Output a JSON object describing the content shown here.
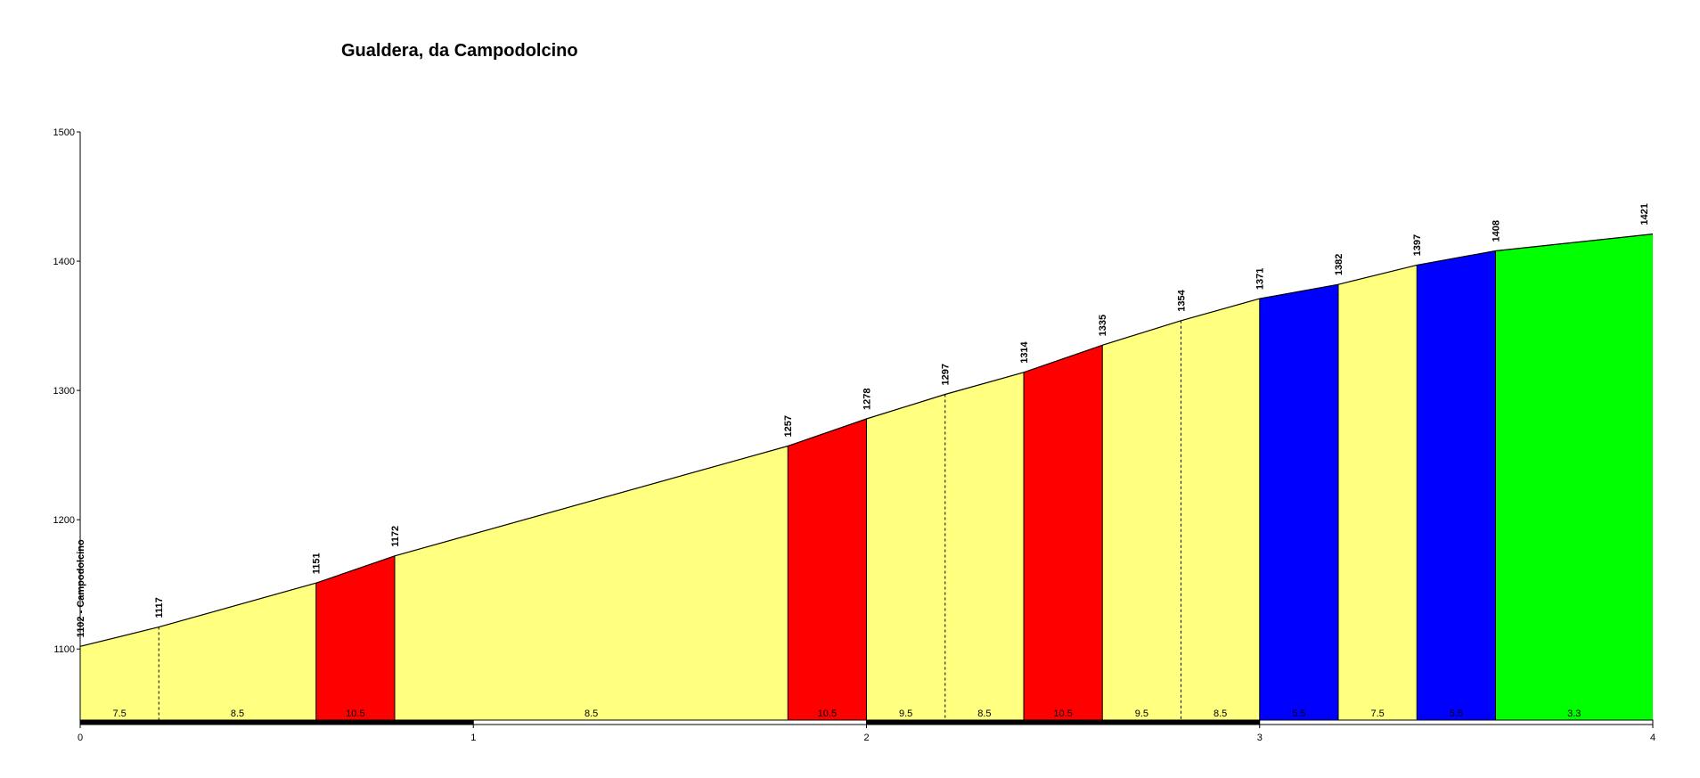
{
  "chart_data": {
    "type": "area",
    "title": "Gualdera, da Campodolcino",
    "xlabel": "",
    "ylabel": "",
    "xlim": [
      0,
      4
    ],
    "ylim": [
      1045,
      1500
    ],
    "x_ticks": [
      "0",
      "1",
      "2",
      "3",
      "4"
    ],
    "y_ticks": [
      "1100",
      "1200",
      "1300",
      "1400",
      "1500"
    ],
    "profile": [
      {
        "x": 0.0,
        "elev": 1102,
        "label": "1102 - Campodolcino"
      },
      {
        "x": 0.2,
        "elev": 1117,
        "label": "1117"
      },
      {
        "x": 0.6,
        "elev": 1151,
        "label": "1151"
      },
      {
        "x": 0.8,
        "elev": 1172,
        "label": "1172"
      },
      {
        "x": 1.8,
        "elev": 1257,
        "label": "1257"
      },
      {
        "x": 2.0,
        "elev": 1278,
        "label": "1278"
      },
      {
        "x": 2.2,
        "elev": 1297,
        "label": "1297"
      },
      {
        "x": 2.4,
        "elev": 1314,
        "label": "1314"
      },
      {
        "x": 2.6,
        "elev": 1335,
        "label": "1335"
      },
      {
        "x": 2.8,
        "elev": 1354,
        "label": "1354"
      },
      {
        "x": 3.0,
        "elev": 1371,
        "label": "1371"
      },
      {
        "x": 3.2,
        "elev": 1382,
        "label": "1382"
      },
      {
        "x": 3.4,
        "elev": 1397,
        "label": "1397"
      },
      {
        "x": 3.6,
        "elev": 1408,
        "label": "1408"
      },
      {
        "x": 4.0,
        "elev": 1421,
        "label": "1421"
      }
    ],
    "segments": [
      {
        "x0": 0.0,
        "x1": 0.2,
        "gradient": "7.5",
        "color": "#FFFF80"
      },
      {
        "x0": 0.2,
        "x1": 0.6,
        "gradient": "8.5",
        "color": "#FFFF80"
      },
      {
        "x0": 0.6,
        "x1": 0.8,
        "gradient": "10.5",
        "color": "#FF0000"
      },
      {
        "x0": 0.8,
        "x1": 1.8,
        "gradient": "8.5",
        "color": "#FFFF80"
      },
      {
        "x0": 1.8,
        "x1": 2.0,
        "gradient": "10.5",
        "color": "#FF0000"
      },
      {
        "x0": 2.0,
        "x1": 2.2,
        "gradient": "9.5",
        "color": "#FFFF80"
      },
      {
        "x0": 2.2,
        "x1": 2.4,
        "gradient": "8.5",
        "color": "#FFFF80"
      },
      {
        "x0": 2.4,
        "x1": 2.6,
        "gradient": "10.5",
        "color": "#FF0000"
      },
      {
        "x0": 2.6,
        "x1": 2.8,
        "gradient": "9.5",
        "color": "#FFFF80"
      },
      {
        "x0": 2.8,
        "x1": 3.0,
        "gradient": "8.5",
        "color": "#FFFF80"
      },
      {
        "x0": 3.0,
        "x1": 3.2,
        "gradient": "5.5",
        "color": "#0000FF"
      },
      {
        "x0": 3.2,
        "x1": 3.4,
        "gradient": "7.5",
        "color": "#FFFF80"
      },
      {
        "x0": 3.4,
        "x1": 3.6,
        "gradient": "5.5",
        "color": "#0000FF"
      },
      {
        "x0": 3.6,
        "x1": 4.0,
        "gradient": "3.3",
        "color": "#00FF00"
      }
    ],
    "km_bar": [
      {
        "x0": 0.0,
        "x1": 1.0,
        "fill": "#000000"
      },
      {
        "x0": 1.0,
        "x1": 2.0,
        "fill": "#FFFFFF"
      },
      {
        "x0": 2.0,
        "x1": 3.0,
        "fill": "#000000"
      },
      {
        "x0": 3.0,
        "x1": 4.0,
        "fill": "#FFFFFF"
      }
    ],
    "grid": false
  }
}
